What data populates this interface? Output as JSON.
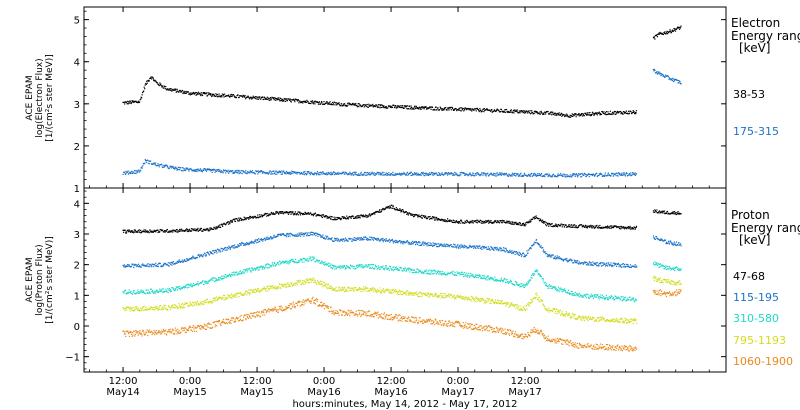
{
  "chart_data": [
    {
      "type": "scatter",
      "panel": "electron",
      "ylabel": [
        "ACE EPAM",
        "log(Electron Flux)",
        "[1/(cm²s ster MeV)]"
      ],
      "legend_title": [
        "Electron",
        "Energy ranges",
        "[keV]"
      ],
      "ylim": [
        1,
        5.3
      ],
      "yticks": [
        1,
        2,
        3,
        4,
        5
      ],
      "series": [
        {
          "name": "38-53",
          "color": "#000000",
          "points": [
            [
              0,
              3.02
            ],
            [
              3,
              3.05
            ],
            [
              4,
              3.45
            ],
            [
              5,
              3.65
            ],
            [
              6,
              3.5
            ],
            [
              8,
              3.35
            ],
            [
              12,
              3.25
            ],
            [
              20,
              3.18
            ],
            [
              30,
              3.08
            ],
            [
              40,
              2.98
            ],
            [
              50,
              2.92
            ],
            [
              60,
              2.87
            ],
            [
              70,
              2.82
            ],
            [
              76,
              2.78
            ],
            [
              80,
              2.72
            ],
            [
              86,
              2.78
            ],
            [
              92,
              2.8
            ]
          ],
          "gap_points": [
            [
              95,
              4.55
            ],
            [
              96,
              4.65
            ],
            [
              98,
              4.72
            ],
            [
              100,
              4.82
            ]
          ],
          "noise": 0.04
        },
        {
          "name": "175-315",
          "color": "#1c73c8",
          "points": [
            [
              0,
              1.35
            ],
            [
              3,
              1.4
            ],
            [
              4,
              1.65
            ],
            [
              6,
              1.55
            ],
            [
              10,
              1.45
            ],
            [
              20,
              1.38
            ],
            [
              40,
              1.34
            ],
            [
              60,
              1.33
            ],
            [
              80,
              1.3
            ],
            [
              92,
              1.33
            ]
          ],
          "gap_points": [
            [
              95,
              3.8
            ],
            [
              96,
              3.72
            ],
            [
              98,
              3.6
            ],
            [
              100,
              3.5
            ]
          ],
          "noise": 0.04
        }
      ]
    },
    {
      "type": "scatter",
      "panel": "proton",
      "ylabel": [
        "ACE EPAM",
        "log(Proton Flux)",
        "[1/(cm²s ster MeV)]"
      ],
      "legend_title": [
        "Proton",
        "Energy ranges",
        "[keV]"
      ],
      "ylim": [
        -1.5,
        4.5
      ],
      "yticks": [
        -1,
        0,
        1,
        2,
        3,
        4
      ],
      "series": [
        {
          "name": "47-68",
          "color": "#000000",
          "points": [
            [
              0,
              3.08
            ],
            [
              8,
              3.1
            ],
            [
              16,
              3.15
            ],
            [
              20,
              3.45
            ],
            [
              28,
              3.7
            ],
            [
              34,
              3.65
            ],
            [
              38,
              3.5
            ],
            [
              44,
              3.6
            ],
            [
              48,
              3.9
            ],
            [
              52,
              3.6
            ],
            [
              60,
              3.4
            ],
            [
              68,
              3.4
            ],
            [
              72,
              3.3
            ],
            [
              74,
              3.55
            ],
            [
              76,
              3.3
            ],
            [
              82,
              3.25
            ],
            [
              92,
              3.2
            ]
          ],
          "gap_points": [
            [
              95,
              3.75
            ],
            [
              97,
              3.7
            ],
            [
              100,
              3.68
            ]
          ],
          "noise": 0.05
        },
        {
          "name": "115-195",
          "color": "#1c73c8",
          "points": [
            [
              0,
              1.95
            ],
            [
              8,
              2.0
            ],
            [
              14,
              2.3
            ],
            [
              20,
              2.6
            ],
            [
              28,
              2.95
            ],
            [
              34,
              3.0
            ],
            [
              38,
              2.8
            ],
            [
              44,
              2.85
            ],
            [
              52,
              2.7
            ],
            [
              60,
              2.6
            ],
            [
              68,
              2.5
            ],
            [
              72,
              2.3
            ],
            [
              74,
              2.8
            ],
            [
              76,
              2.3
            ],
            [
              82,
              2.05
            ],
            [
              92,
              1.95
            ]
          ],
          "gap_points": [
            [
              95,
              2.9
            ],
            [
              97,
              2.75
            ],
            [
              100,
              2.65
            ]
          ],
          "noise": 0.06
        },
        {
          "name": "310-580",
          "color": "#1fd7c8",
          "points": [
            [
              0,
              1.1
            ],
            [
              8,
              1.15
            ],
            [
              14,
              1.4
            ],
            [
              20,
              1.7
            ],
            [
              28,
              2.05
            ],
            [
              34,
              2.2
            ],
            [
              38,
              1.9
            ],
            [
              44,
              1.95
            ],
            [
              52,
              1.8
            ],
            [
              60,
              1.7
            ],
            [
              68,
              1.5
            ],
            [
              72,
              1.3
            ],
            [
              74,
              1.8
            ],
            [
              76,
              1.3
            ],
            [
              82,
              1.0
            ],
            [
              92,
              0.85
            ]
          ],
          "gap_points": [
            [
              95,
              2.05
            ],
            [
              97,
              1.9
            ],
            [
              100,
              1.85
            ]
          ],
          "noise": 0.07
        },
        {
          "name": "795-1193",
          "color": "#d2dc1e",
          "points": [
            [
              0,
              0.55
            ],
            [
              8,
              0.6
            ],
            [
              14,
              0.75
            ],
            [
              20,
              1.0
            ],
            [
              28,
              1.3
            ],
            [
              34,
              1.5
            ],
            [
              38,
              1.2
            ],
            [
              44,
              1.2
            ],
            [
              52,
              1.05
            ],
            [
              60,
              0.95
            ],
            [
              68,
              0.75
            ],
            [
              72,
              0.55
            ],
            [
              74,
              1.0
            ],
            [
              76,
              0.55
            ],
            [
              82,
              0.25
            ],
            [
              92,
              0.15
            ]
          ],
          "gap_points": [
            [
              95,
              1.55
            ],
            [
              97,
              1.45
            ],
            [
              100,
              1.4
            ]
          ],
          "noise": 0.08
        },
        {
          "name": "1060-1900",
          "color": "#e98a1c",
          "points": [
            [
              0,
              -0.25
            ],
            [
              8,
              -0.2
            ],
            [
              14,
              -0.05
            ],
            [
              20,
              0.2
            ],
            [
              28,
              0.55
            ],
            [
              34,
              0.85
            ],
            [
              38,
              0.45
            ],
            [
              44,
              0.4
            ],
            [
              52,
              0.2
            ],
            [
              60,
              0.05
            ],
            [
              68,
              -0.15
            ],
            [
              72,
              -0.35
            ],
            [
              74,
              -0.1
            ],
            [
              76,
              -0.4
            ],
            [
              82,
              -0.65
            ],
            [
              92,
              -0.75
            ]
          ],
          "gap_points": [
            [
              95,
              1.15
            ],
            [
              97,
              1.05
            ],
            [
              100,
              1.1
            ]
          ],
          "noise": 0.1
        }
      ]
    }
  ],
  "x_axis": {
    "range_hours": [
      -7,
      108
    ],
    "ticks": [
      {
        "hour": 0,
        "time": "12:00",
        "date": "May14"
      },
      {
        "hour": 12,
        "time": "0:00",
        "date": "May15"
      },
      {
        "hour": 24,
        "time": "12:00",
        "date": "May15"
      },
      {
        "hour": 36,
        "time": "0:00",
        "date": "May16"
      },
      {
        "hour": 48,
        "time": "12:00",
        "date": "May16"
      },
      {
        "hour": 60,
        "time": "0:00",
        "date": "May17"
      },
      {
        "hour": 72,
        "time": "12:00",
        "date": "May17"
      }
    ],
    "label": "hours:minutes, May 14, 2012 - May 17, 2012"
  }
}
